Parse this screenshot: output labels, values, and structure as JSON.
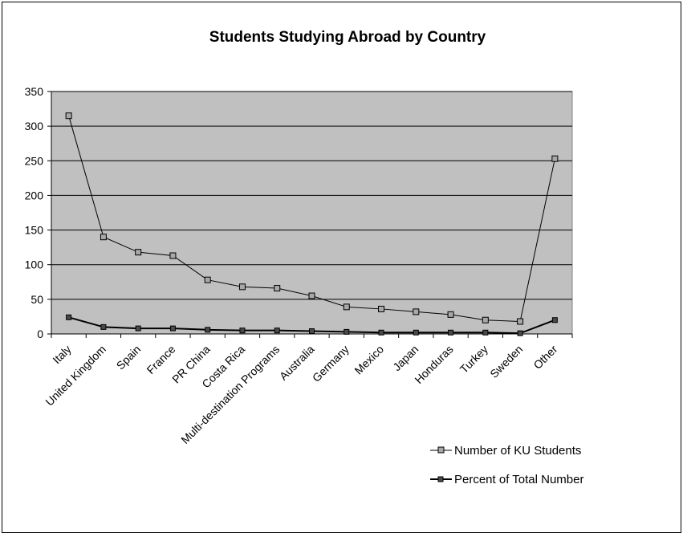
{
  "chart_data": {
    "type": "line",
    "title": "Students Studying Abroad by Country",
    "xlabel": "",
    "ylabel": "",
    "ylim": [
      0,
      350
    ],
    "yticks": [
      0,
      50,
      100,
      150,
      200,
      250,
      300,
      350
    ],
    "grid": true,
    "legend_position": "bottom-right",
    "categories": [
      "Italy",
      "United Kingdom",
      "Spain",
      "France",
      "PR China",
      "Costa Rica",
      "Multi-destination Programs",
      "Australia",
      "Germany",
      "Mexico",
      "Japan",
      "Honduras",
      "Turkey",
      "Sweden",
      "Other"
    ],
    "series": [
      {
        "name": "Number of KU Students",
        "values": [
          315,
          140,
          118,
          113,
          78,
          68,
          66,
          55,
          39,
          36,
          32,
          28,
          20,
          18,
          253
        ],
        "marker_color": "#a8a8a8",
        "line_color": "#000000"
      },
      {
        "name": "Percent of Total Number",
        "values": [
          24,
          10,
          8,
          8,
          6,
          5,
          5,
          4,
          3,
          2,
          2,
          2,
          2,
          1,
          20
        ],
        "marker_color": "#4a4a4a",
        "line_color": "#000000"
      }
    ],
    "plot_background": "#c0c0c0"
  }
}
